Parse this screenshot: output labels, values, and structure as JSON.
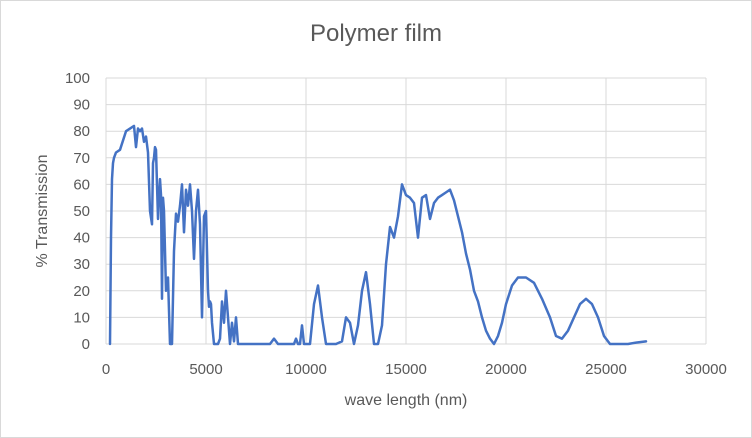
{
  "chart_data": {
    "type": "line",
    "title": "Polymer film",
    "xlabel": "wave length (nm)",
    "ylabel": "% Transmission",
    "xlim": [
      0,
      30000
    ],
    "ylim": [
      0,
      100
    ],
    "x_ticks": [
      "0",
      "5000",
      "10000",
      "15000",
      "20000",
      "25000",
      "30000"
    ],
    "y_ticks": [
      "0",
      "10",
      "20",
      "30",
      "40",
      "50",
      "60",
      "70",
      "80",
      "90",
      "100"
    ],
    "grid": true,
    "legend": "none",
    "series_color": "#4472c4",
    "series": [
      {
        "x": [
          200,
          250,
          300,
          350,
          400,
          500,
          700,
          1000,
          1200,
          1400,
          1500,
          1600,
          1700,
          1800,
          1900,
          2000,
          2100,
          2200,
          2300,
          2350,
          2400,
          2450,
          2500,
          2550,
          2600,
          2650,
          2700,
          2750,
          2800,
          2850,
          2900,
          3000,
          3100,
          3200,
          3300,
          3400,
          3500,
          3600,
          3700,
          3800,
          3900,
          4000,
          4100,
          4200,
          4300,
          4400,
          4500,
          4600,
          4700,
          4800,
          4900,
          5000,
          5100,
          5150,
          5200,
          5250,
          5300,
          5400,
          5500,
          5600,
          5700,
          5800,
          5900,
          6000,
          6100,
          6200,
          6300,
          6400,
          6500,
          6600,
          6700,
          6800,
          7000,
          7500,
          8000,
          8200,
          8400,
          8600,
          9000,
          9400,
          9500,
          9600,
          9700,
          9800,
          9900,
          10000,
          10200,
          10400,
          10600,
          10800,
          11000,
          11200,
          11500,
          11800,
          12000,
          12200,
          12400,
          12600,
          12800,
          13000,
          13200,
          13400,
          13600,
          13800,
          14000,
          14200,
          14400,
          14600,
          14800,
          15000,
          15200,
          15400,
          15600,
          15800,
          16000,
          16200,
          16400,
          16600,
          16800,
          17000,
          17200,
          17400,
          17600,
          17800,
          18000,
          18200,
          18400,
          18600,
          18800,
          19000,
          19200,
          19400,
          19600,
          19800,
          20000,
          20300,
          20600,
          21000,
          21400,
          21800,
          22200,
          22500,
          22800,
          23100,
          23400,
          23700,
          24000,
          24300,
          24600,
          24900,
          25200,
          25500,
          25800,
          26100,
          26500,
          27000
        ],
        "y": [
          0,
          40,
          62,
          68,
          70,
          72,
          73,
          80,
          81,
          82,
          74,
          81,
          80,
          81,
          76,
          78,
          72,
          50,
          45,
          68,
          70,
          74,
          73,
          60,
          47,
          55,
          62,
          56,
          17,
          55,
          50,
          20,
          25,
          0,
          0,
          35,
          49,
          46,
          52,
          60,
          42,
          58,
          52,
          60,
          50,
          32,
          50,
          58,
          45,
          10,
          48,
          50,
          20,
          14,
          16,
          15,
          8,
          0,
          0,
          0,
          2,
          16,
          8,
          20,
          10,
          0,
          8,
          1,
          10,
          0,
          0,
          0,
          0,
          0,
          0,
          0,
          2,
          0,
          0,
          0,
          2,
          0,
          0,
          7,
          0,
          0,
          0,
          15,
          22,
          10,
          0,
          0,
          0,
          1,
          10,
          8,
          0,
          7,
          20,
          27,
          15,
          0,
          0,
          7,
          30,
          44,
          40,
          48,
          60,
          56,
          55,
          53,
          40,
          55,
          56,
          47,
          53,
          55,
          56,
          57,
          58,
          54,
          48,
          42,
          34,
          28,
          20,
          16,
          10,
          5,
          2,
          0,
          3,
          8,
          15,
          22,
          25,
          25,
          23,
          17,
          10,
          3,
          2,
          5,
          10,
          15,
          17,
          15,
          10,
          3,
          0,
          0,
          0,
          0,
          0.5,
          1
        ]
      }
    ]
  }
}
